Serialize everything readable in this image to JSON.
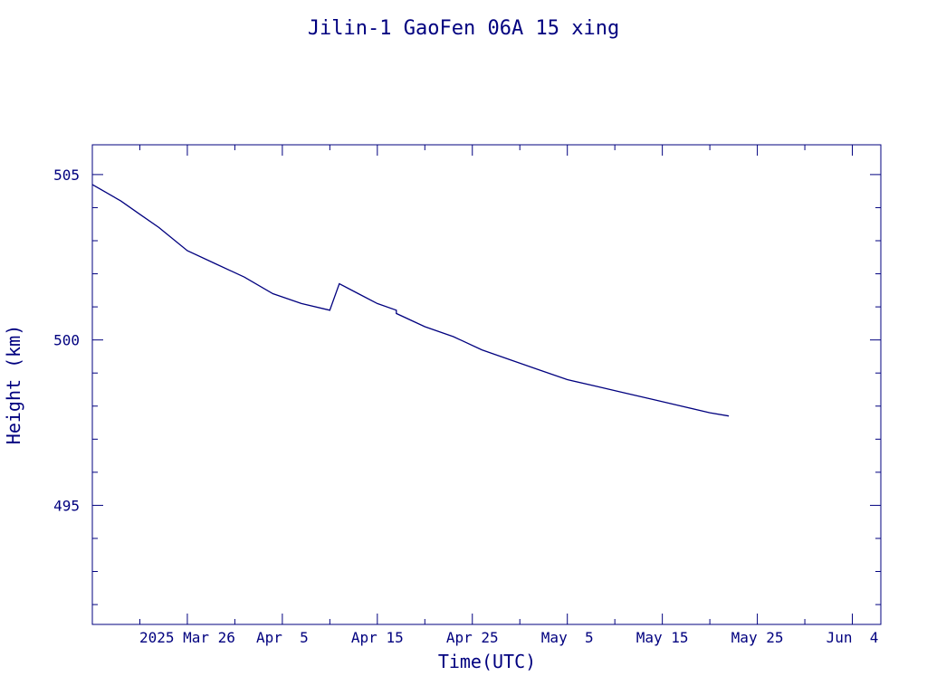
{
  "chart_data": {
    "type": "line",
    "title": "Jilin-1 GaoFen 06A 15 xing",
    "xlabel": "Time(UTC)",
    "ylabel": "Height (km)",
    "x_tick_labels": [
      "2025 Mar 26",
      "Apr  5",
      "Apr 15",
      "Apr 25",
      "May  5",
      "May 15",
      "May 25",
      "Jun  4"
    ],
    "x_tick_dates": [
      "2025-03-26",
      "2025-04-05",
      "2025-04-15",
      "2025-04-25",
      "2025-05-05",
      "2025-05-15",
      "2025-05-25",
      "2025-06-04"
    ],
    "xlim": [
      "2025-03-16",
      "2025-06-07"
    ],
    "ylim": [
      491.4,
      505.9
    ],
    "y_ticks": [
      495,
      500,
      505
    ],
    "y_tick_labels": [
      "495",
      "500",
      "505"
    ],
    "grid": false,
    "color": "#00007f",
    "series": [
      {
        "x": [
          "2025-03-16",
          "2025-03-19",
          "2025-03-21",
          "2025-03-23",
          "2025-03-26",
          "2025-03-29",
          "2025-04-01",
          "2025-04-04",
          "2025-04-07",
          "2025-04-10",
          "2025-04-11",
          "2025-04-13",
          "2025-04-15",
          "2025-04-17",
          "2025-04-17",
          "2025-04-20",
          "2025-04-23",
          "2025-04-26",
          "2025-04-29",
          "2025-05-02",
          "2025-05-05",
          "2025-05-08",
          "2025-05-11",
          "2025-05-14",
          "2025-05-17",
          "2025-05-20",
          "2025-05-22"
        ],
        "y": [
          504.7,
          504.2,
          503.8,
          503.4,
          502.7,
          502.3,
          501.9,
          501.4,
          501.1,
          500.9,
          501.7,
          501.4,
          501.1,
          500.9,
          500.8,
          500.4,
          500.1,
          499.7,
          499.4,
          499.1,
          498.8,
          498.6,
          498.4,
          498.2,
          498.0,
          497.8,
          497.7
        ]
      }
    ]
  }
}
